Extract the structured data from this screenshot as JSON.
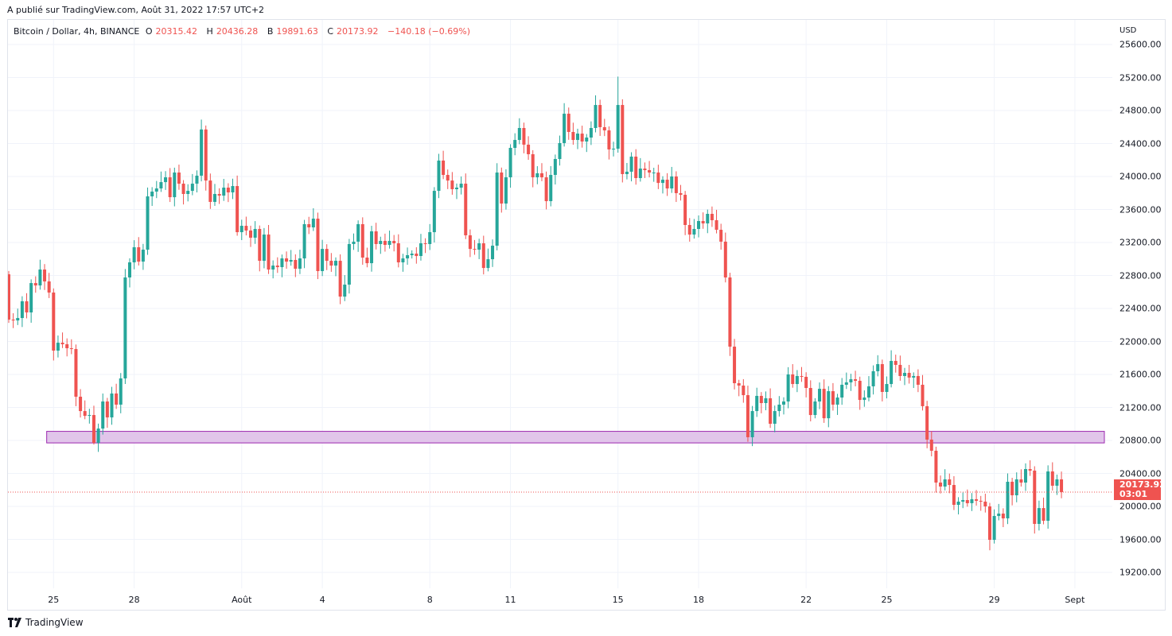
{
  "published": "A publié sur TradingView.com, Août 31, 2022 17:57 UTC+2",
  "legend": {
    "symbol": "Bitcoin / Dollar, 4h, BINANCE",
    "o_label": "O",
    "o": "20315.42",
    "h_label": "H",
    "h": "20436.28",
    "l_label": "B",
    "l": "19891.63",
    "c_label": "C",
    "c": "20173.92",
    "change": "−140.18 (−0.69%)"
  },
  "currency": "USD",
  "last_price": {
    "value": "20173.92",
    "countdown": "03:01"
  },
  "footer": {
    "brand": "TradingView"
  },
  "colors": {
    "up": "#26a69a",
    "down": "#ef5350",
    "zone_fill": "#e1c5ea",
    "zone_border": "#9c27b0",
    "grid": "#f0f3fa"
  },
  "chart_data": {
    "type": "candlestick",
    "title": "Bitcoin / Dollar, 4h, BINANCE",
    "ylim": [
      19050,
      25750
    ],
    "y_ticks": [
      "19200.00",
      "19600.00",
      "20000.00",
      "20400.00",
      "20800.00",
      "21200.00",
      "21600.00",
      "22000.00",
      "22400.00",
      "22800.00",
      "23200.00",
      "23600.00",
      "24000.00",
      "24400.00",
      "24800.00",
      "25200.00",
      "25600.00"
    ],
    "x_ticks": [
      {
        "label": "25",
        "index": 10
      },
      {
        "label": "28",
        "index": 28
      },
      {
        "label": "Août",
        "index": 52
      },
      {
        "label": "4",
        "index": 70
      },
      {
        "label": "8",
        "index": 94
      },
      {
        "label": "11",
        "index": 112
      },
      {
        "label": "15",
        "index": 136
      },
      {
        "label": "18",
        "index": 154
      },
      {
        "label": "22",
        "index": 178
      },
      {
        "label": "25",
        "index": 196
      },
      {
        "label": "29",
        "index": 220
      },
      {
        "label": "Sept",
        "index": 238
      }
    ],
    "first_open": 22814,
    "closes": [
      22265,
      22255,
      22284,
      22487,
      22352,
      22708,
      22679,
      22872,
      22728,
      22593,
      21889,
      21985,
      21966,
      21918,
      21908,
      21330,
      21156,
      21098,
      21108,
      20771,
      20944,
      21272,
      21079,
      21369,
      21234,
      21552,
      22776,
      22959,
      23142,
      22968,
      23113,
      23759,
      23817,
      23855,
      23932,
      23990,
      23749,
      24048,
      23913,
      23788,
      23826,
      23913,
      24010,
      24570,
      23951,
      23692,
      23788,
      23768,
      23865,
      23807,
      23884,
      23325,
      23402,
      23345,
      23258,
      23364,
      22978,
      23296,
      22872,
      22920,
      22901,
      23007,
      22968,
      22988,
      22882,
      23007,
      23422,
      23383,
      23489,
      22853,
      23122,
      22978,
      22920,
      22978,
      22544,
      22689,
      23181,
      23210,
      23422,
      23017,
      22949,
      23335,
      23181,
      23219,
      23171,
      23219,
      23190,
      22959,
      23007,
      23046,
      23065,
      23036,
      23190,
      23181,
      23325,
      23826,
      24193,
      24019,
      23951,
      23846,
      23865,
      23913,
      23287,
      23122,
      23113,
      23190,
      22891,
      22997,
      23161,
      24048,
      23672,
      23990,
      24347,
      24443,
      24588,
      24386,
      24270,
      23990,
      24039,
      23990,
      23701,
      24019,
      24212,
      24405,
      24761,
      24540,
      24443,
      24520,
      24424,
      24472,
      24588,
      24867,
      24598,
      24559,
      24328,
      24337,
      24867,
      24029,
      24058,
      24241,
      23981,
      24096,
      24077,
      24048,
      24048,
      23922,
      23961,
      23855,
      24000,
      23798,
      23778,
      23412,
      23296,
      23364,
      23460,
      23431,
      23547,
      23470,
      23354,
      23210,
      22776,
      21937,
      21494,
      21465,
      21349,
      20839,
      21156,
      21340,
      21253,
      21311,
      21002,
      21156,
      21234,
      21272,
      21600,
      21484,
      21581,
      21571,
      21436,
      21108,
      21272,
      21426,
      21069,
      21397,
      21234,
      21320,
      21475,
      21504,
      21542,
      21523,
      21291,
      21320,
      21456,
      21639,
      21725,
      21388,
      21484,
      21764,
      21716,
      21581,
      21619,
      21562,
      21581,
      21475,
      21215,
      20810,
      20675,
      20289,
      20241,
      20328,
      20260,
      20019,
      20058,
      20077,
      20039,
      20087,
      20068,
      20058,
      20000,
      19595,
      19884,
      19913,
      19855,
      20299,
      20135,
      20328,
      20289,
      20453,
      20434,
      19788,
      19980,
      19826,
      20424,
      20251,
      20328,
      20173.92
    ],
    "notable_extremes": [
      {
        "index": 136,
        "high": 25211
      },
      {
        "index": 43,
        "high": 24690
      },
      {
        "index": 220,
        "low": 19550
      },
      {
        "index": 19,
        "low": 20750
      }
    ],
    "support_zone": {
      "from_index": 9,
      "price_low": 20770,
      "price_high": 20910
    },
    "last_price_line": 20173.92
  }
}
